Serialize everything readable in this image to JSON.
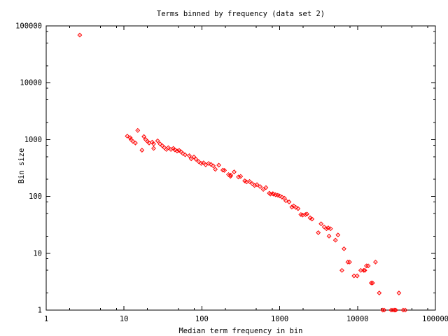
{
  "chart_data": {
    "type": "scatter",
    "title": "Terms binned by frequency (data set 2)",
    "xlabel": "Median term frequency in bin",
    "ylabel": "Bin size",
    "x_scale": "log",
    "y_scale": "log",
    "xlim": [
      1,
      100000
    ],
    "ylim": [
      1,
      100000
    ],
    "x_ticks": [
      1,
      10,
      100,
      1000,
      10000,
      100000
    ],
    "y_ticks": [
      1,
      10,
      100,
      1000,
      10000,
      100000
    ],
    "minor_tick_multipliers": [
      2,
      5,
      8
    ],
    "grid": false,
    "legend": "none",
    "marker": "open-diamond",
    "marker_color": "#ff0000",
    "axis_color": "#000000",
    "points": [
      [
        2.7,
        69000
      ],
      [
        11,
        1150
      ],
      [
        12,
        1080
      ],
      [
        12.3,
        1000
      ],
      [
        13,
        930
      ],
      [
        14,
        870
      ],
      [
        15,
        1450
      ],
      [
        17,
        650
      ],
      [
        18,
        1130
      ],
      [
        19,
        1000
      ],
      [
        20,
        930
      ],
      [
        21,
        870
      ],
      [
        23,
        900
      ],
      [
        24,
        840
      ],
      [
        24,
        700
      ],
      [
        27,
        950
      ],
      [
        29,
        840
      ],
      [
        31,
        780
      ],
      [
        33,
        720
      ],
      [
        35,
        670
      ],
      [
        37,
        720
      ],
      [
        40,
        670
      ],
      [
        43,
        700
      ],
      [
        45,
        660
      ],
      [
        48,
        630
      ],
      [
        51,
        645
      ],
      [
        54,
        610
      ],
      [
        57,
        570
      ],
      [
        61,
        540
      ],
      [
        69,
        520
      ],
      [
        73,
        460
      ],
      [
        79,
        495
      ],
      [
        84,
        450
      ],
      [
        91,
        410
      ],
      [
        98,
        380
      ],
      [
        105,
        390
      ],
      [
        112,
        360
      ],
      [
        122,
        380
      ],
      [
        131,
        365
      ],
      [
        140,
        345
      ],
      [
        149,
        300
      ],
      [
        165,
        355
      ],
      [
        186,
        290
      ],
      [
        195,
        287
      ],
      [
        220,
        242
      ],
      [
        233,
        226
      ],
      [
        235,
        237
      ],
      [
        260,
        270
      ],
      [
        295,
        220
      ],
      [
        315,
        225
      ],
      [
        355,
        188
      ],
      [
        375,
        180
      ],
      [
        410,
        183
      ],
      [
        445,
        167
      ],
      [
        475,
        156
      ],
      [
        510,
        161
      ],
      [
        560,
        149
      ],
      [
        615,
        133
      ],
      [
        665,
        143
      ],
      [
        735,
        114
      ],
      [
        760,
        110
      ],
      [
        815,
        112
      ],
      [
        830,
        110
      ],
      [
        885,
        107
      ],
      [
        945,
        105
      ],
      [
        1000,
        102
      ],
      [
        1070,
        97
      ],
      [
        1150,
        93
      ],
      [
        1200,
        84
      ],
      [
        1320,
        80
      ],
      [
        1430,
        65
      ],
      [
        1510,
        68
      ],
      [
        1610,
        64
      ],
      [
        1720,
        61
      ],
      [
        1870,
        48
      ],
      [
        1970,
        47
      ],
      [
        2140,
        48
      ],
      [
        2240,
        49
      ],
      [
        2460,
        42
      ],
      [
        2600,
        40
      ],
      [
        3130,
        23
      ],
      [
        3400,
        33
      ],
      [
        3730,
        29
      ],
      [
        3990,
        27
      ],
      [
        4200,
        28
      ],
      [
        4300,
        20
      ],
      [
        4500,
        27
      ],
      [
        5200,
        17
      ],
      [
        5600,
        21
      ],
      [
        6300,
        5
      ],
      [
        6700,
        12
      ],
      [
        7500,
        7
      ],
      [
        7900,
        7
      ],
      [
        9000,
        4
      ],
      [
        9900,
        4
      ],
      [
        11000,
        5
      ],
      [
        12000,
        5
      ],
      [
        12400,
        5
      ],
      [
        13000,
        6
      ],
      [
        13700,
        6
      ],
      [
        15000,
        3
      ],
      [
        15600,
        3
      ],
      [
        17000,
        7
      ],
      [
        19000,
        2
      ],
      [
        34000,
        2
      ],
      [
        21000,
        1
      ],
      [
        22000,
        1
      ],
      [
        27000,
        1
      ],
      [
        28500,
        1
      ],
      [
        30000,
        1
      ],
      [
        31000,
        1
      ],
      [
        38500,
        1
      ],
      [
        41000,
        1
      ]
    ]
  }
}
